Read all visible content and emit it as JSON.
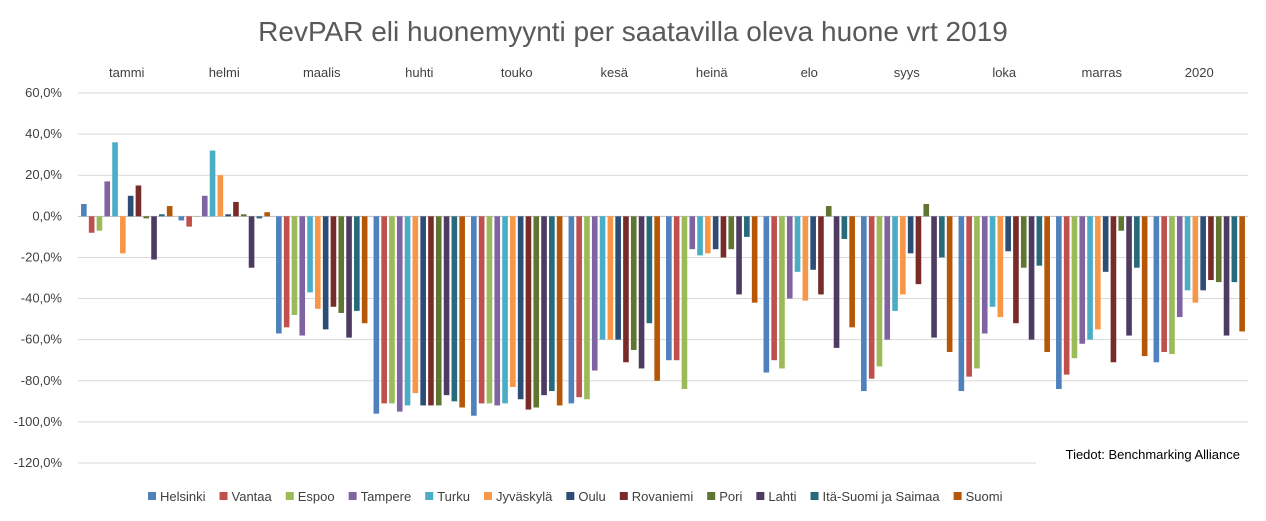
{
  "chart_data": {
    "type": "bar",
    "title": "RevPAR eli huonemyynti per saatavilla oleva huone vrt 2019",
    "categories": [
      "tammi",
      "helmi",
      "maalis",
      "huhti",
      "touko",
      "kesä",
      "heinä",
      "elo",
      "syys",
      "loka",
      "marras",
      "2020"
    ],
    "y_ticks": [
      "60,0%",
      "40,0%",
      "20,0%",
      "0,0%",
      "-20,0%",
      "-40,0%",
      "-60,0%",
      "-80,0%",
      "-100,0%",
      "-120,0%"
    ],
    "ylim": [
      -120,
      60
    ],
    "y_unit": "%",
    "grid": true,
    "legend_position": "bottom",
    "series": [
      {
        "name": "Helsinki",
        "color": "#4f81bd",
        "values": [
          6,
          -2,
          -57,
          -96,
          -97,
          -91,
          -70,
          -76,
          -85,
          -85,
          -84,
          -71
        ]
      },
      {
        "name": "Vantaa",
        "color": "#c0504d",
        "values": [
          -8,
          -5,
          -54,
          -91,
          -91,
          -88,
          -70,
          -70,
          -79,
          -78,
          -77,
          -66
        ]
      },
      {
        "name": "Espoo",
        "color": "#9bbb59",
        "values": [
          -7,
          0,
          -48,
          -91,
          -91,
          -89,
          -84,
          -74,
          -73,
          -74,
          -69,
          -67
        ]
      },
      {
        "name": "Tampere",
        "color": "#8064a2",
        "values": [
          17,
          10,
          -58,
          -95,
          -92,
          -75,
          -16,
          -40,
          -60,
          -57,
          -62,
          -49
        ]
      },
      {
        "name": "Turku",
        "color": "#4bacc6",
        "values": [
          36,
          32,
          -37,
          -92,
          -91,
          -60,
          -19,
          -27,
          -46,
          -44,
          -60,
          -36
        ]
      },
      {
        "name": "Jyväskylä",
        "color": "#f79646",
        "values": [
          -18,
          20,
          -45,
          -86,
          -83,
          -60,
          -18,
          -41,
          -38,
          -49,
          -55,
          -42
        ]
      },
      {
        "name": "Oulu",
        "color": "#2c4d75",
        "values": [
          10,
          1,
          -55,
          -92,
          -89,
          -60,
          -16,
          -26,
          -18,
          -17,
          -27,
          -36
        ]
      },
      {
        "name": "Rovaniemi",
        "color": "#772c2a",
        "values": [
          15,
          7,
          -44,
          -92,
          -94,
          -71,
          -20,
          -38,
          -33,
          -52,
          -71,
          -31
        ]
      },
      {
        "name": "Pori",
        "color": "#5f7530",
        "values": [
          -1,
          1,
          -47,
          -92,
          -93,
          -65,
          -16,
          5,
          6,
          -25,
          -7,
          -32
        ]
      },
      {
        "name": "Lahti",
        "color": "#4d3b62",
        "values": [
          -21,
          -25,
          -59,
          -87,
          -87,
          -74,
          -38,
          -64,
          -59,
          -60,
          -58,
          -58
        ]
      },
      {
        "name": "Itä-Suomi ja Saimaa",
        "color": "#276a7c",
        "values": [
          1,
          -1,
          -46,
          -90,
          -85,
          -52,
          -10,
          -11,
          -20,
          -24,
          -25,
          -32
        ]
      },
      {
        "name": "Suomi",
        "color": "#b65708",
        "values": [
          5,
          2,
          -52,
          -93,
          -92,
          -80,
          -42,
          -54,
          -66,
          -66,
          -68,
          -56
        ]
      }
    ]
  },
  "source_note": "Tiedot: Benchmarking Alliance"
}
